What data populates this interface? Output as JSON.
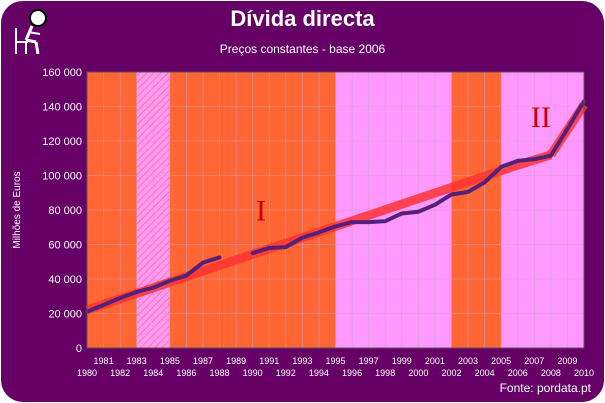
{
  "colors": {
    "background": "#660066",
    "plot_white": "#ffffff",
    "period_orange": "#ff6633",
    "period_pink": "#ff99ff",
    "trend_band": "#ff3333",
    "data_line": "#55207a",
    "text": "#ffffff",
    "axis_text": "#000000"
  },
  "header": {
    "title": "Dívida directa",
    "subtitle": "Preços constantes - base 2006"
  },
  "footer": {
    "source": "Fonte: pordata.pt"
  },
  "logo": {
    "icon": "person-reading-chair-icon"
  },
  "chart_data": {
    "type": "line",
    "title": "Dívida directa",
    "subtitle": "Preços constantes - base 2006",
    "xlabel": "",
    "ylabel": "Milhões de Euros",
    "xlim": [
      1980,
      2010
    ],
    "ylim": [
      0,
      160000
    ],
    "grid": true,
    "y_ticks": [
      0,
      20000,
      40000,
      60000,
      80000,
      100000,
      120000,
      140000,
      160000
    ],
    "y_tick_labels": [
      "0",
      "20 000",
      "40 000",
      "60 000",
      "80 000",
      "100 000",
      "120 000",
      "140 000",
      "160 000"
    ],
    "x_tick_labels_top": [
      "1981",
      "1983",
      "1985",
      "1987",
      "1989",
      "1991",
      "1993",
      "1995",
      "1997",
      "1999",
      "2001",
      "2003",
      "2005",
      "2007",
      "2009"
    ],
    "x_tick_labels_bottom": [
      "1980",
      "1982",
      "1984",
      "1986",
      "1988",
      "1990",
      "1992",
      "1994",
      "1996",
      "1998",
      "2000",
      "2002",
      "2004",
      "2006",
      "2008",
      "2010"
    ],
    "period_shading": [
      {
        "start": 1980,
        "end": 1983,
        "style": "orange"
      },
      {
        "start": 1983,
        "end": 1985,
        "style": "pink-hatched"
      },
      {
        "start": 1985,
        "end": 1995,
        "style": "orange"
      },
      {
        "start": 1995,
        "end": 2002,
        "style": "pink"
      },
      {
        "start": 2002,
        "end": 2005,
        "style": "orange"
      },
      {
        "start": 2005,
        "end": 2010,
        "style": "pink"
      }
    ],
    "annotations": [
      {
        "text": "I",
        "x": 1990.5,
        "y": 74000
      },
      {
        "text": "II",
        "x": 2007.4,
        "y": 128000
      }
    ],
    "series": [
      {
        "segments": [
          {
            "x": [
              1980,
              1981,
              1982,
              1983,
              1984,
              1985,
              1986,
              1987,
              1988
            ],
            "y": [
              21000,
              25000,
              29000,
              32500,
              35000,
              39000,
              42000,
              49500,
              52500
            ]
          },
          {
            "x": [
              1990,
              1991,
              1992,
              1993,
              1994,
              1995,
              1996,
              1997,
              1998,
              1999,
              2000,
              2001,
              2002,
              2003,
              2004,
              2005,
              2006,
              2007,
              2008,
              2009,
              2010
            ],
            "y": [
              55000,
              58000,
              58500,
              64000,
              67000,
              70500,
              73000,
              73000,
              73500,
              78000,
              79000,
              83000,
              89000,
              90500,
              96000,
              105000,
              108500,
              109500,
              111500,
              127000,
              143000
            ]
          }
        ]
      }
    ],
    "trend_bands": [
      {
        "x": [
          1980,
          2006
        ],
        "y": [
          22000,
          106000
        ]
      },
      {
        "x": [
          2006,
          2008
        ],
        "y": [
          106000,
          112000
        ]
      },
      {
        "x": [
          2008,
          2010
        ],
        "y": [
          112000,
          141000
        ]
      }
    ]
  }
}
